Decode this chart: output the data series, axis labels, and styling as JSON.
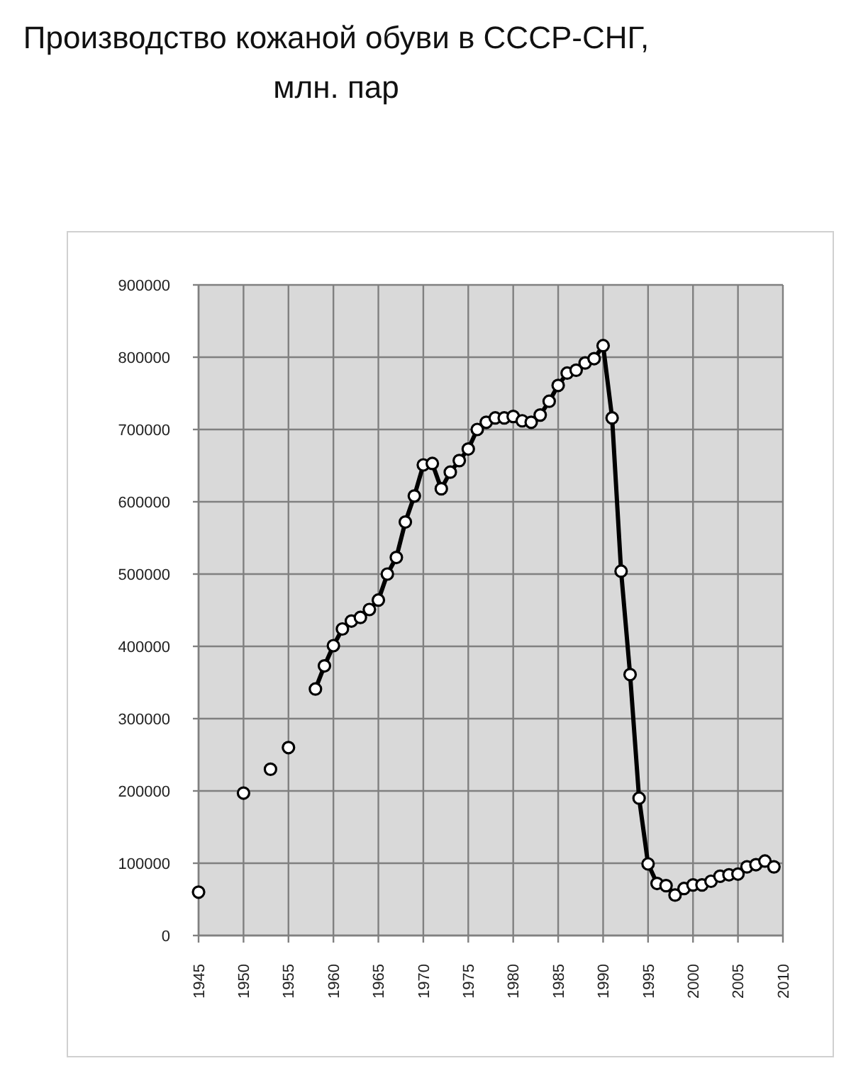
{
  "chart_data": {
    "type": "line",
    "title": "Производство кожаной обуви в СССР-СНГ, млн. пар",
    "x": [
      1945,
      1946,
      1947,
      1948,
      1949,
      1950,
      1951,
      1952,
      1953,
      1954,
      1955,
      1956,
      1957,
      1958,
      1959,
      1960,
      1961,
      1962,
      1963,
      1964,
      1965,
      1966,
      1967,
      1968,
      1969,
      1970,
      1971,
      1972,
      1973,
      1974,
      1975,
      1976,
      1977,
      1978,
      1979,
      1980,
      1981,
      1982,
      1983,
      1984,
      1985,
      1986,
      1987,
      1988,
      1989,
      1990,
      1991,
      1992,
      1993,
      1994,
      1995,
      1996,
      1997,
      1998,
      1999,
      2000,
      2001,
      2002,
      2003,
      2004,
      2005,
      2006,
      2007,
      2008,
      2009
    ],
    "series": [
      {
        "color": "#000000",
        "values": [
          60000,
          null,
          null,
          null,
          null,
          197000,
          null,
          null,
          230000,
          null,
          260000,
          null,
          null,
          341000,
          373000,
          401000,
          424000,
          435000,
          440000,
          451000,
          464000,
          500000,
          523000,
          572000,
          608000,
          651000,
          653000,
          618000,
          641000,
          657000,
          673000,
          700000,
          710000,
          716000,
          716000,
          718000,
          712000,
          710000,
          720000,
          739000,
          761000,
          778000,
          782000,
          792000,
          798000,
          816000,
          716000,
          504000,
          361000,
          190000,
          99000,
          72000,
          69000,
          56000,
          65000,
          70000,
          70000,
          75000,
          82000,
          84000,
          85000,
          95000,
          98000,
          103000,
          95000
        ]
      }
    ],
    "xlim": [
      1945,
      2010
    ],
    "xticks": [
      1945,
      1950,
      1955,
      1960,
      1965,
      1970,
      1975,
      1980,
      1985,
      1990,
      1995,
      2000,
      2005,
      2010
    ],
    "ylim": [
      0,
      900000
    ],
    "yticks": [
      0,
      100000,
      200000,
      300000,
      400000,
      500000,
      600000,
      700000,
      800000,
      900000
    ],
    "grid": true,
    "marker": "circle",
    "line_style": "solid"
  }
}
